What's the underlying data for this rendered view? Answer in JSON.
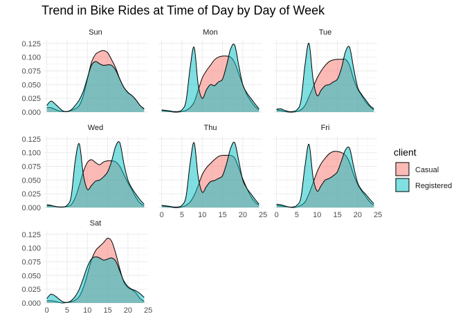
{
  "chart_data": {
    "type": "area",
    "title": "Trend in Bike Rides at Time of Day by Day of Week",
    "xlabel": "",
    "ylabel": "",
    "xlim": [
      0,
      24
    ],
    "ylim": [
      0,
      0.125
    ],
    "x_ticks": [
      0,
      5,
      10,
      15,
      20,
      25
    ],
    "y_ticks": [
      "0.000",
      "0.025",
      "0.050",
      "0.075",
      "0.100",
      "0.125"
    ],
    "grid": true,
    "legend_position": "right",
    "legend": {
      "title": "client",
      "items": [
        {
          "name": "Casual",
          "color": "#F8766D"
        },
        {
          "name": "Registered",
          "color": "#00BFC4"
        }
      ]
    },
    "x": [
      0,
      1,
      2,
      3,
      4,
      5,
      6,
      7,
      8,
      9,
      10,
      11,
      12,
      13,
      14,
      15,
      16,
      17,
      18,
      19,
      20,
      21,
      22,
      23,
      24
    ],
    "panels": [
      {
        "label": "Sun",
        "series": [
          {
            "name": "Casual",
            "values": [
              0.008,
              0.008,
              0.005,
              0.002,
              0.001,
              0.001,
              0.003,
              0.006,
              0.012,
              0.03,
              0.06,
              0.09,
              0.105,
              0.11,
              0.112,
              0.108,
              0.095,
              0.08,
              0.06,
              0.045,
              0.035,
              0.03,
              0.022,
              0.012,
              0.005
            ]
          },
          {
            "name": "Registered",
            "values": [
              0.012,
              0.02,
              0.015,
              0.008,
              0.002,
              0.001,
              0.004,
              0.012,
              0.022,
              0.038,
              0.062,
              0.085,
              0.092,
              0.088,
              0.085,
              0.086,
              0.085,
              0.076,
              0.06,
              0.045,
              0.036,
              0.03,
              0.022,
              0.012,
              0.006
            ]
          }
        ]
      },
      {
        "label": "Mon",
        "series": [
          {
            "name": "Casual",
            "values": [
              0.003,
              0.002,
              0.001,
              0.0,
              0.0,
              0.001,
              0.003,
              0.008,
              0.018,
              0.04,
              0.062,
              0.075,
              0.085,
              0.095,
              0.1,
              0.102,
              0.102,
              0.1,
              0.09,
              0.07,
              0.05,
              0.032,
              0.02,
              0.01,
              0.004
            ]
          },
          {
            "name": "Registered",
            "values": [
              0.004,
              0.003,
              0.002,
              0.001,
              0.001,
              0.004,
              0.02,
              0.08,
              0.118,
              0.05,
              0.025,
              0.04,
              0.05,
              0.048,
              0.055,
              0.06,
              0.085,
              0.115,
              0.122,
              0.085,
              0.05,
              0.035,
              0.025,
              0.015,
              0.006
            ]
          }
        ]
      },
      {
        "label": "Tue",
        "series": [
          {
            "name": "Casual",
            "values": [
              0.004,
              0.003,
              0.001,
              0.0,
              0.0,
              0.001,
              0.004,
              0.012,
              0.028,
              0.045,
              0.062,
              0.075,
              0.085,
              0.092,
              0.095,
              0.096,
              0.096,
              0.096,
              0.085,
              0.06,
              0.042,
              0.03,
              0.018,
              0.01,
              0.004
            ]
          },
          {
            "name": "Registered",
            "values": [
              0.005,
              0.006,
              0.003,
              0.001,
              0.001,
              0.004,
              0.02,
              0.085,
              0.125,
              0.06,
              0.03,
              0.04,
              0.048,
              0.05,
              0.055,
              0.06,
              0.08,
              0.11,
              0.118,
              0.08,
              0.045,
              0.032,
              0.022,
              0.012,
              0.006
            ]
          }
        ]
      },
      {
        "label": "Wed",
        "series": [
          {
            "name": "Casual",
            "values": [
              0.003,
              0.003,
              0.002,
              0.001,
              0.001,
              0.002,
              0.005,
              0.018,
              0.04,
              0.065,
              0.082,
              0.087,
              0.082,
              0.078,
              0.083,
              0.085,
              0.085,
              0.083,
              0.075,
              0.06,
              0.045,
              0.032,
              0.018,
              0.008,
              0.003
            ]
          },
          {
            "name": "Registered",
            "values": [
              0.005,
              0.004,
              0.002,
              0.001,
              0.001,
              0.004,
              0.02,
              0.085,
              0.116,
              0.06,
              0.033,
              0.04,
              0.048,
              0.05,
              0.056,
              0.065,
              0.085,
              0.112,
              0.118,
              0.08,
              0.05,
              0.035,
              0.024,
              0.014,
              0.006
            ]
          }
        ]
      },
      {
        "label": "Thu",
        "series": [
          {
            "name": "Casual",
            "values": [
              0.003,
              0.002,
              0.001,
              0.0,
              0.0,
              0.001,
              0.004,
              0.01,
              0.022,
              0.04,
              0.06,
              0.072,
              0.08,
              0.087,
              0.093,
              0.095,
              0.095,
              0.095,
              0.09,
              0.072,
              0.052,
              0.035,
              0.02,
              0.01,
              0.004
            ]
          },
          {
            "name": "Registered",
            "values": [
              0.004,
              0.003,
              0.002,
              0.001,
              0.001,
              0.004,
              0.02,
              0.08,
              0.118,
              0.056,
              0.028,
              0.038,
              0.047,
              0.049,
              0.053,
              0.058,
              0.08,
              0.108,
              0.118,
              0.085,
              0.05,
              0.035,
              0.025,
              0.015,
              0.006
            ]
          }
        ]
      },
      {
        "label": "Fri",
        "series": [
          {
            "name": "Casual",
            "values": [
              0.004,
              0.003,
              0.002,
              0.001,
              0.0,
              0.001,
              0.004,
              0.01,
              0.025,
              0.045,
              0.065,
              0.08,
              0.09,
              0.098,
              0.102,
              0.102,
              0.1,
              0.095,
              0.082,
              0.06,
              0.042,
              0.03,
              0.02,
              0.01,
              0.004
            ]
          },
          {
            "name": "Registered",
            "values": [
              0.006,
              0.005,
              0.003,
              0.001,
              0.001,
              0.004,
              0.018,
              0.075,
              0.115,
              0.055,
              0.03,
              0.04,
              0.05,
              0.053,
              0.058,
              0.065,
              0.085,
              0.105,
              0.108,
              0.075,
              0.045,
              0.032,
              0.024,
              0.015,
              0.007
            ]
          }
        ]
      },
      {
        "label": "Sat",
        "series": [
          {
            "name": "Casual",
            "values": [
              0.004,
              0.004,
              0.003,
              0.001,
              0.0,
              0.001,
              0.002,
              0.005,
              0.012,
              0.028,
              0.052,
              0.078,
              0.095,
              0.103,
              0.11,
              0.118,
              0.112,
              0.09,
              0.062,
              0.038,
              0.028,
              0.024,
              0.018,
              0.008,
              0.003
            ]
          },
          {
            "name": "Registered",
            "values": [
              0.008,
              0.016,
              0.013,
              0.007,
              0.002,
              0.001,
              0.004,
              0.012,
              0.025,
              0.045,
              0.066,
              0.08,
              0.084,
              0.082,
              0.078,
              0.08,
              0.082,
              0.076,
              0.058,
              0.04,
              0.03,
              0.025,
              0.022,
              0.017,
              0.01
            ]
          }
        ]
      }
    ]
  }
}
